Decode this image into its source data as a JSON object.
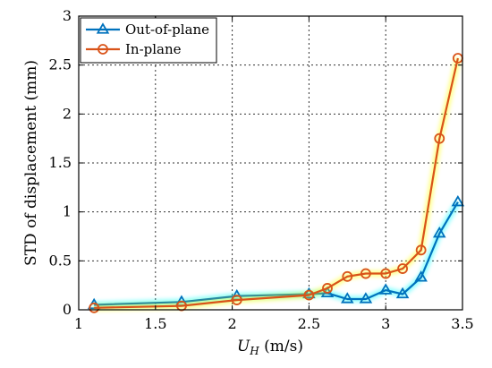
{
  "chart_data": {
    "type": "line",
    "xlabel_var": "U",
    "xlabel_sub": "H",
    "xlabel_units": " (m/s)",
    "ylabel": "STD of displacement (mm)",
    "xlim": [
      1,
      3.5
    ],
    "ylim": [
      0,
      3
    ],
    "x_ticks": [
      1,
      1.5,
      2,
      2.5,
      3,
      3.5
    ],
    "x_tick_labels": [
      "1",
      "1.5",
      "2",
      "2.5",
      "3",
      "3.5"
    ],
    "y_ticks": [
      0,
      0.5,
      1,
      1.5,
      2,
      2.5,
      3
    ],
    "y_tick_labels": [
      "0",
      "0.5",
      "1",
      "1.5",
      "2",
      "2.5",
      "3"
    ],
    "grid": true,
    "legend_position": "top-left",
    "series": [
      {
        "name": "Out-of-plane",
        "marker": "triangle",
        "color": "#0072BD",
        "x": [
          1.1,
          1.67,
          2.03,
          2.5,
          2.62,
          2.75,
          2.87,
          3.0,
          3.11,
          3.23,
          3.35,
          3.47
        ],
        "y": [
          0.05,
          0.08,
          0.14,
          0.16,
          0.17,
          0.11,
          0.11,
          0.2,
          0.16,
          0.33,
          0.78,
          1.1
        ]
      },
      {
        "name": "In-plane",
        "marker": "circle",
        "color": "#D95319",
        "x": [
          1.1,
          1.67,
          2.03,
          2.5,
          2.62,
          2.75,
          2.87,
          3.0,
          3.11,
          3.23,
          3.35,
          3.47
        ],
        "y": [
          0.02,
          0.04,
          0.1,
          0.15,
          0.22,
          0.34,
          0.37,
          0.37,
          0.42,
          0.61,
          1.75,
          2.57
        ]
      }
    ]
  }
}
